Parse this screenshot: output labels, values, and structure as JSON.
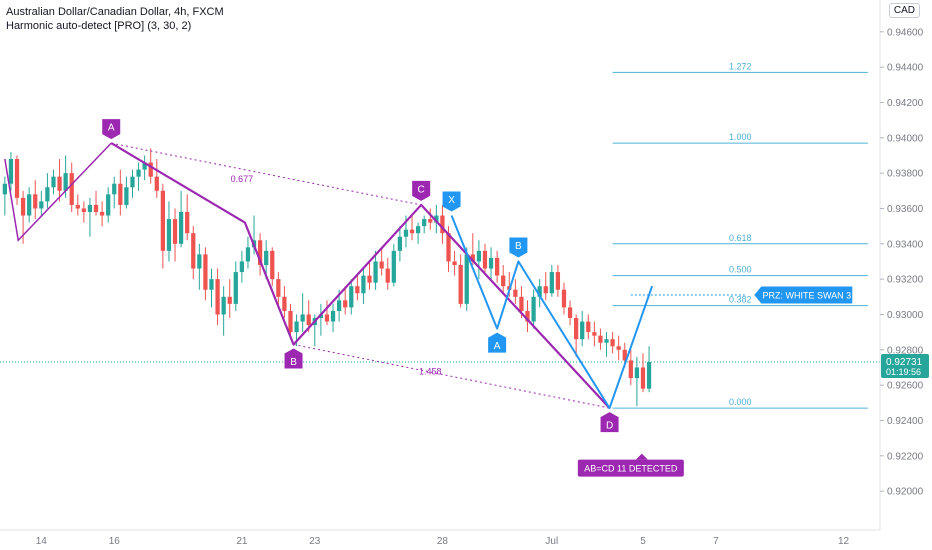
{
  "header": {
    "symbol_line": "Australian Dollar/Canadian Dollar, 4h, FXCM",
    "indicator_line": "Harmonic auto-detect [PRO] (3, 30, 2)",
    "currency": "CAD"
  },
  "colors": {
    "up": "#26a69a",
    "down": "#ef5350",
    "pattern_purple": "#9c27b0",
    "pattern_blue": "#2196f3",
    "fib_line": "#4fb0d6",
    "axis_text": "#787b86",
    "price_badge": "#26a69a"
  },
  "chart_data": {
    "type": "candlestick",
    "y_axis": {
      "ticks": [
        "0.94600",
        "0.94400",
        "0.94200",
        "0.94000",
        "0.93800",
        "0.93600",
        "0.93400",
        "0.93200",
        "0.93000",
        "0.92800",
        "0.92600",
        "0.92400",
        "0.92200",
        "0.92000"
      ],
      "ylim": [
        0.9178,
        0.9478
      ]
    },
    "x_axis": {
      "ticks": [
        {
          "label": "14",
          "bar": 6
        },
        {
          "label": "16",
          "bar": 18
        },
        {
          "label": "21",
          "bar": 39
        },
        {
          "label": "23",
          "bar": 51
        },
        {
          "label": "28",
          "bar": 72
        },
        {
          "label": "Jul",
          "bar": 90
        },
        {
          "label": "5",
          "bar": 105
        },
        {
          "label": "7",
          "bar": 117
        },
        {
          "label": "12",
          "bar": 138
        }
      ],
      "xlim": [
        -0.8,
        144
      ]
    },
    "candles": [
      {
        "o": 0.9368,
        "h": 0.9378,
        "l": 0.9356,
        "c": 0.9374
      },
      {
        "o": 0.9374,
        "h": 0.9392,
        "l": 0.937,
        "c": 0.9388
      },
      {
        "o": 0.9388,
        "h": 0.939,
        "l": 0.9362,
        "c": 0.9366
      },
      {
        "o": 0.9366,
        "h": 0.937,
        "l": 0.934,
        "c": 0.9356
      },
      {
        "o": 0.9356,
        "h": 0.9372,
        "l": 0.9352,
        "c": 0.9368
      },
      {
        "o": 0.9368,
        "h": 0.9376,
        "l": 0.9354,
        "c": 0.936
      },
      {
        "o": 0.936,
        "h": 0.937,
        "l": 0.9356,
        "c": 0.9364
      },
      {
        "o": 0.9364,
        "h": 0.938,
        "l": 0.936,
        "c": 0.9372
      },
      {
        "o": 0.9372,
        "h": 0.9382,
        "l": 0.9368,
        "c": 0.9378
      },
      {
        "o": 0.9378,
        "h": 0.9388,
        "l": 0.9364,
        "c": 0.937
      },
      {
        "o": 0.937,
        "h": 0.939,
        "l": 0.9366,
        "c": 0.938
      },
      {
        "o": 0.938,
        "h": 0.9386,
        "l": 0.9358,
        "c": 0.9362
      },
      {
        "o": 0.9362,
        "h": 0.9368,
        "l": 0.9356,
        "c": 0.936
      },
      {
        "o": 0.936,
        "h": 0.9364,
        "l": 0.9352,
        "c": 0.9358
      },
      {
        "o": 0.9358,
        "h": 0.9366,
        "l": 0.9344,
        "c": 0.9362
      },
      {
        "o": 0.9362,
        "h": 0.937,
        "l": 0.9356,
        "c": 0.9358
      },
      {
        "o": 0.9358,
        "h": 0.9364,
        "l": 0.935,
        "c": 0.9356
      },
      {
        "o": 0.9356,
        "h": 0.9372,
        "l": 0.9352,
        "c": 0.9368
      },
      {
        "o": 0.9368,
        "h": 0.9378,
        "l": 0.936,
        "c": 0.9374
      },
      {
        "o": 0.9374,
        "h": 0.9382,
        "l": 0.9356,
        "c": 0.9362
      },
      {
        "o": 0.9362,
        "h": 0.9378,
        "l": 0.936,
        "c": 0.9372
      },
      {
        "o": 0.9372,
        "h": 0.9382,
        "l": 0.9366,
        "c": 0.9378
      },
      {
        "o": 0.9378,
        "h": 0.9386,
        "l": 0.937,
        "c": 0.9382
      },
      {
        "o": 0.9382,
        "h": 0.939,
        "l": 0.9376,
        "c": 0.9386
      },
      {
        "o": 0.9386,
        "h": 0.9394,
        "l": 0.9374,
        "c": 0.9378
      },
      {
        "o": 0.9378,
        "h": 0.9388,
        "l": 0.9366,
        "c": 0.937
      },
      {
        "o": 0.937,
        "h": 0.9374,
        "l": 0.9326,
        "c": 0.9336
      },
      {
        "o": 0.9336,
        "h": 0.9364,
        "l": 0.933,
        "c": 0.9354
      },
      {
        "o": 0.9354,
        "h": 0.936,
        "l": 0.933,
        "c": 0.934
      },
      {
        "o": 0.934,
        "h": 0.937,
        "l": 0.9338,
        "c": 0.9358
      },
      {
        "o": 0.9358,
        "h": 0.9368,
        "l": 0.9342,
        "c": 0.9346
      },
      {
        "o": 0.9346,
        "h": 0.935,
        "l": 0.932,
        "c": 0.9326
      },
      {
        "o": 0.9326,
        "h": 0.934,
        "l": 0.9314,
        "c": 0.9334
      },
      {
        "o": 0.9334,
        "h": 0.9338,
        "l": 0.9308,
        "c": 0.9314
      },
      {
        "o": 0.9314,
        "h": 0.9326,
        "l": 0.9304,
        "c": 0.932
      },
      {
        "o": 0.932,
        "h": 0.9326,
        "l": 0.9294,
        "c": 0.93
      },
      {
        "o": 0.93,
        "h": 0.9316,
        "l": 0.9288,
        "c": 0.931
      },
      {
        "o": 0.931,
        "h": 0.932,
        "l": 0.9298,
        "c": 0.9306
      },
      {
        "o": 0.9306,
        "h": 0.933,
        "l": 0.9302,
        "c": 0.9324
      },
      {
        "o": 0.9324,
        "h": 0.9336,
        "l": 0.9318,
        "c": 0.933
      },
      {
        "o": 0.933,
        "h": 0.9344,
        "l": 0.9326,
        "c": 0.9338
      },
      {
        "o": 0.9338,
        "h": 0.9356,
        "l": 0.9334,
        "c": 0.9342
      },
      {
        "o": 0.9342,
        "h": 0.9346,
        "l": 0.9322,
        "c": 0.9328
      },
      {
        "o": 0.9328,
        "h": 0.9342,
        "l": 0.932,
        "c": 0.9336
      },
      {
        "o": 0.9336,
        "h": 0.9338,
        "l": 0.9316,
        "c": 0.932
      },
      {
        "o": 0.932,
        "h": 0.9324,
        "l": 0.9304,
        "c": 0.931
      },
      {
        "o": 0.931,
        "h": 0.9316,
        "l": 0.9298,
        "c": 0.9302
      },
      {
        "o": 0.9302,
        "h": 0.9306,
        "l": 0.9286,
        "c": 0.929
      },
      {
        "o": 0.929,
        "h": 0.93,
        "l": 0.9282,
        "c": 0.9296
      },
      {
        "o": 0.9296,
        "h": 0.9312,
        "l": 0.929,
        "c": 0.93
      },
      {
        "o": 0.93,
        "h": 0.9308,
        "l": 0.929,
        "c": 0.9294
      },
      {
        "o": 0.9294,
        "h": 0.93,
        "l": 0.9282,
        "c": 0.9298
      },
      {
        "o": 0.9298,
        "h": 0.9306,
        "l": 0.9288,
        "c": 0.93
      },
      {
        "o": 0.93,
        "h": 0.9308,
        "l": 0.9294,
        "c": 0.9296
      },
      {
        "o": 0.9296,
        "h": 0.9306,
        "l": 0.929,
        "c": 0.9302
      },
      {
        "o": 0.9302,
        "h": 0.9314,
        "l": 0.9296,
        "c": 0.9308
      },
      {
        "o": 0.9308,
        "h": 0.9316,
        "l": 0.93,
        "c": 0.9304
      },
      {
        "o": 0.9304,
        "h": 0.932,
        "l": 0.93,
        "c": 0.9316
      },
      {
        "o": 0.9316,
        "h": 0.9322,
        "l": 0.9308,
        "c": 0.9312
      },
      {
        "o": 0.9312,
        "h": 0.9326,
        "l": 0.9306,
        "c": 0.9322
      },
      {
        "o": 0.9322,
        "h": 0.933,
        "l": 0.9314,
        "c": 0.9318
      },
      {
        "o": 0.9318,
        "h": 0.9336,
        "l": 0.9314,
        "c": 0.933
      },
      {
        "o": 0.933,
        "h": 0.9338,
        "l": 0.9322,
        "c": 0.9326
      },
      {
        "o": 0.9326,
        "h": 0.9332,
        "l": 0.9314,
        "c": 0.9318
      },
      {
        "o": 0.9318,
        "h": 0.934,
        "l": 0.9316,
        "c": 0.9336
      },
      {
        "o": 0.9336,
        "h": 0.935,
        "l": 0.933,
        "c": 0.9344
      },
      {
        "o": 0.9344,
        "h": 0.9356,
        "l": 0.9338,
        "c": 0.9348
      },
      {
        "o": 0.9348,
        "h": 0.9356,
        "l": 0.9342,
        "c": 0.9346
      },
      {
        "o": 0.9346,
        "h": 0.9352,
        "l": 0.934,
        "c": 0.935
      },
      {
        "o": 0.935,
        "h": 0.9356,
        "l": 0.9346,
        "c": 0.9354
      },
      {
        "o": 0.9354,
        "h": 0.936,
        "l": 0.9348,
        "c": 0.9352
      },
      {
        "o": 0.9352,
        "h": 0.9362,
        "l": 0.9346,
        "c": 0.9356
      },
      {
        "o": 0.9356,
        "h": 0.9362,
        "l": 0.934,
        "c": 0.9346
      },
      {
        "o": 0.9346,
        "h": 0.935,
        "l": 0.9324,
        "c": 0.933
      },
      {
        "o": 0.933,
        "h": 0.9336,
        "l": 0.9322,
        "c": 0.9328
      },
      {
        "o": 0.9328,
        "h": 0.9334,
        "l": 0.9304,
        "c": 0.9306
      },
      {
        "o": 0.9306,
        "h": 0.9338,
        "l": 0.9302,
        "c": 0.9334
      },
      {
        "o": 0.9334,
        "h": 0.9346,
        "l": 0.9328,
        "c": 0.933
      },
      {
        "o": 0.933,
        "h": 0.9342,
        "l": 0.932,
        "c": 0.9336
      },
      {
        "o": 0.9336,
        "h": 0.934,
        "l": 0.9324,
        "c": 0.9326
      },
      {
        "o": 0.9326,
        "h": 0.9338,
        "l": 0.932,
        "c": 0.9332
      },
      {
        "o": 0.9332,
        "h": 0.9336,
        "l": 0.9318,
        "c": 0.9322
      },
      {
        "o": 0.9322,
        "h": 0.9328,
        "l": 0.9312,
        "c": 0.9316
      },
      {
        "o": 0.9316,
        "h": 0.9324,
        "l": 0.931,
        "c": 0.9314
      },
      {
        "o": 0.9314,
        "h": 0.932,
        "l": 0.9306,
        "c": 0.931
      },
      {
        "o": 0.931,
        "h": 0.9316,
        "l": 0.9298,
        "c": 0.9302
      },
      {
        "o": 0.9302,
        "h": 0.9308,
        "l": 0.929,
        "c": 0.9296
      },
      {
        "o": 0.9296,
        "h": 0.9314,
        "l": 0.9292,
        "c": 0.931
      },
      {
        "o": 0.931,
        "h": 0.932,
        "l": 0.9304,
        "c": 0.9316
      },
      {
        "o": 0.9316,
        "h": 0.9324,
        "l": 0.9308,
        "c": 0.9312
      },
      {
        "o": 0.9312,
        "h": 0.9328,
        "l": 0.931,
        "c": 0.9324
      },
      {
        "o": 0.9324,
        "h": 0.9328,
        "l": 0.931,
        "c": 0.9314
      },
      {
        "o": 0.9314,
        "h": 0.9318,
        "l": 0.93,
        "c": 0.9304
      },
      {
        "o": 0.9304,
        "h": 0.9308,
        "l": 0.9294,
        "c": 0.9298
      },
      {
        "o": 0.9298,
        "h": 0.93,
        "l": 0.9276,
        "c": 0.9286
      },
      {
        "o": 0.9286,
        "h": 0.9302,
        "l": 0.9282,
        "c": 0.9296
      },
      {
        "o": 0.9296,
        "h": 0.93,
        "l": 0.9286,
        "c": 0.929
      },
      {
        "o": 0.929,
        "h": 0.9296,
        "l": 0.9282,
        "c": 0.9288
      },
      {
        "o": 0.9288,
        "h": 0.9292,
        "l": 0.928,
        "c": 0.9284
      },
      {
        "o": 0.9284,
        "h": 0.929,
        "l": 0.9276,
        "c": 0.9286
      },
      {
        "o": 0.9286,
        "h": 0.929,
        "l": 0.9278,
        "c": 0.9282
      },
      {
        "o": 0.9282,
        "h": 0.9288,
        "l": 0.9274,
        "c": 0.928
      },
      {
        "o": 0.928,
        "h": 0.9284,
        "l": 0.927,
        "c": 0.9274
      },
      {
        "o": 0.9274,
        "h": 0.928,
        "l": 0.926,
        "c": 0.9264
      },
      {
        "o": 0.9264,
        "h": 0.9276,
        "l": 0.9248,
        "c": 0.927
      },
      {
        "o": 0.927,
        "h": 0.9278,
        "l": 0.9256,
        "c": 0.9258
      },
      {
        "o": 0.9258,
        "h": 0.9282,
        "l": 0.9256,
        "c": 0.92731
      }
    ],
    "current_price": {
      "value": 0.92731,
      "label": "0.92731",
      "countdown": "01:19:56"
    },
    "patterns": {
      "purple_zigzag": [
        {
          "bar": 17.5,
          "price": 0.9397,
          "label": "A",
          "label_pos": "above"
        },
        {
          "bar": 39.5,
          "price": 0.9352,
          "label": "",
          "label_pos": "none"
        },
        {
          "bar": 47.5,
          "price": 0.9283,
          "label": "B",
          "label_pos": "below"
        },
        {
          "bar": 68.5,
          "price": 0.9362,
          "label": "C",
          "label_pos": "above"
        },
        {
          "bar": 99.5,
          "price": 0.9247,
          "label": "D",
          "label_pos": "below"
        }
      ],
      "purple_dotted": [
        {
          "from": {
            "bar": 17.5,
            "price": 0.9397
          },
          "to": {
            "bar": 68.5,
            "price": 0.9362
          },
          "ratio_label": "0.677",
          "label_at": {
            "bar": 39,
            "price": 0.9375
          }
        },
        {
          "from": {
            "bar": 47.5,
            "price": 0.9283
          },
          "to": {
            "bar": 99.5,
            "price": 0.9247
          },
          "ratio_label": "1.458",
          "label_at": {
            "bar": 70,
            "price": 0.9266
          }
        }
      ],
      "left_segment": [
        {
          "bar": 0,
          "price": 0.9388
        },
        {
          "bar": 2.2,
          "price": 0.9342
        },
        {
          "bar": 17.5,
          "price": 0.9397
        }
      ],
      "blue_swan": [
        {
          "bar": 73.5,
          "price": 0.9356,
          "label": "X",
          "label_pos": "above"
        },
        {
          "bar": 81,
          "price": 0.9292,
          "label": "A",
          "label_pos": "below"
        },
        {
          "bar": 84.5,
          "price": 0.933,
          "label": "B",
          "label_pos": "above"
        },
        {
          "bar": 99.5,
          "price": 0.9247,
          "label": "",
          "label_pos": "none"
        },
        {
          "bar": 106.5,
          "price": 0.9316,
          "label": "",
          "label_pos": "none"
        }
      ],
      "fib_levels": [
        {
          "label": "1.272",
          "price": 0.9437
        },
        {
          "label": "1.000",
          "price": 0.9397
        },
        {
          "label": "0.618",
          "price": 0.934
        },
        {
          "label": "0.500",
          "price": 0.9322
        },
        {
          "label": "0.382",
          "price": 0.9305
        },
        {
          "label": "0.000",
          "price": 0.9247
        }
      ],
      "fib_range": {
        "bar_from": 100,
        "bar_to": 142
      },
      "prz": {
        "label": "PRZ: WHITE SWAN 3",
        "price": 0.9311,
        "bar_from": 103,
        "bar_to": 122
      },
      "detected": {
        "label": "AB=CD 11 DETECTED",
        "bar": 103,
        "price": 0.9213
      }
    }
  }
}
